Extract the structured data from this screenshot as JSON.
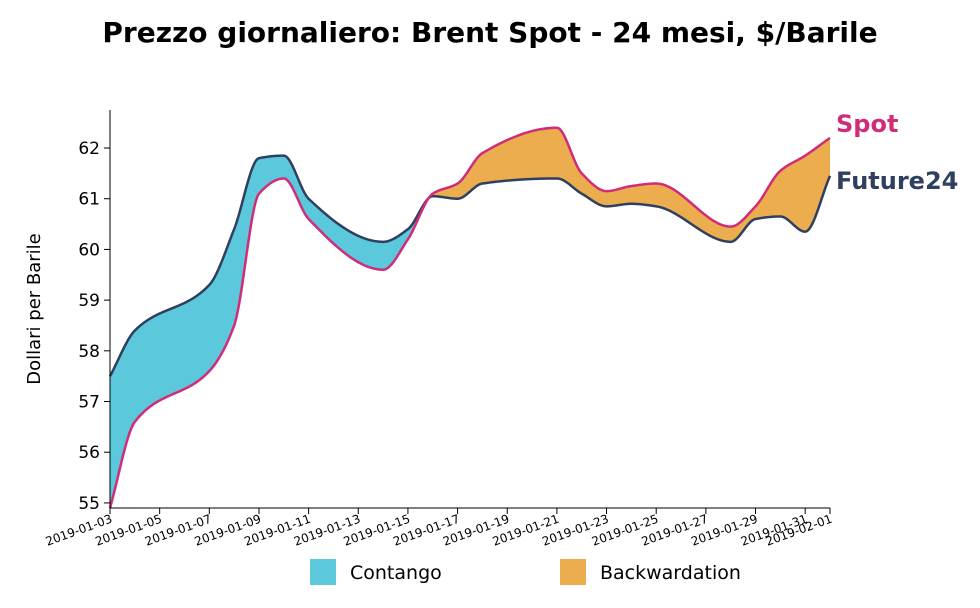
{
  "chart_data": {
    "type": "area",
    "title": "Prezzo giornaliero: Brent Spot - 24 mesi, $/Barile",
    "xlabel": "",
    "ylabel": "Dollari per Barile",
    "ylim": [
      54.9,
      62.75
    ],
    "yticks": [
      55,
      56,
      57,
      58,
      59,
      60,
      61,
      62
    ],
    "xticks": [
      "2019-01-03",
      "2019-01-05",
      "2019-01-07",
      "2019-01-09",
      "2019-01-11",
      "2019-01-13",
      "2019-01-15",
      "2019-01-17",
      "2019-01-19",
      "2019-01-21",
      "2019-01-23",
      "2019-01-25",
      "2019-01-27",
      "2019-01-29",
      "2019-01-31",
      "2019-02-01"
    ],
    "x": [
      "2019-01-03",
      "2019-01-04",
      "2019-01-07",
      "2019-01-08",
      "2019-01-09",
      "2019-01-10",
      "2019-01-11",
      "2019-01-14",
      "2019-01-15",
      "2019-01-16",
      "2019-01-17",
      "2019-01-18",
      "2019-01-21",
      "2019-01-22",
      "2019-01-23",
      "2019-01-24",
      "2019-01-25",
      "2019-01-28",
      "2019-01-29",
      "2019-01-30",
      "2019-01-31",
      "2019-02-01"
    ],
    "series": [
      {
        "name": "Spot",
        "color": "#d02c7a",
        "values": [
          54.9,
          56.6,
          57.6,
          58.5,
          61.1,
          61.4,
          60.6,
          59.6,
          60.2,
          61.1,
          61.3,
          61.9,
          62.4,
          61.5,
          61.15,
          61.25,
          61.3,
          60.45,
          60.85,
          61.55,
          61.85,
          62.2
        ]
      },
      {
        "name": "Future24",
        "color": "#2f3f60",
        "values": [
          57.5,
          58.4,
          59.3,
          60.4,
          61.8,
          61.85,
          61.0,
          60.15,
          60.4,
          61.05,
          61.0,
          61.3,
          61.4,
          61.1,
          60.85,
          60.9,
          60.85,
          60.15,
          60.6,
          60.65,
          60.35,
          61.45
        ]
      }
    ],
    "fills": [
      {
        "name": "Contango",
        "color": "#5bc8db"
      },
      {
        "name": "Backwardation",
        "color": "#ebad4e"
      }
    ],
    "legend_position": "bottom-center",
    "grid": false
  }
}
